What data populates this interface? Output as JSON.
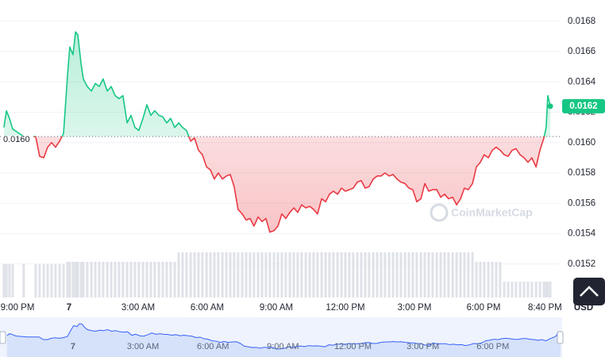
{
  "chart_data": {
    "type": "line",
    "x": [
      0.17,
      0.28,
      0.41,
      0.55,
      1.03,
      1.55,
      1.72,
      1.9,
      2.07,
      2.24,
      2.41,
      2.59,
      2.76,
      2.93,
      3.03,
      3.17,
      3.28,
      3.38,
      3.52,
      3.62,
      3.79,
      3.97,
      4.14,
      4.31,
      4.48,
      4.66,
      4.83,
      5.0,
      5.17,
      5.34,
      5.52,
      5.69,
      5.86,
      6.03,
      6.21,
      6.38,
      6.55,
      6.72,
      6.9,
      7.07,
      7.24,
      7.41,
      7.59,
      7.76,
      7.93,
      8.1,
      8.28,
      8.45,
      8.62,
      8.79,
      8.97,
      9.14,
      9.31,
      9.48,
      9.66,
      9.83,
      10.0,
      10.17,
      10.34,
      10.52,
      10.69,
      10.86,
      11.03,
      11.21,
      11.38,
      11.55,
      11.72,
      11.9,
      12.07,
      12.24,
      12.41,
      12.59,
      12.76,
      12.93,
      13.1,
      13.28,
      13.45,
      13.62,
      13.79,
      13.97,
      14.14,
      14.31,
      14.48,
      14.66,
      14.83,
      15.0,
      15.17,
      15.34,
      15.52,
      15.69,
      15.86,
      16.03,
      16.21,
      16.38,
      16.55,
      16.72,
      16.9,
      17.07,
      17.24,
      17.41,
      17.59,
      17.76,
      17.93,
      18.1,
      18.28,
      18.45,
      18.62,
      18.79,
      18.97,
      19.14,
      19.31,
      19.48,
      19.66,
      19.83,
      20.0,
      20.17,
      20.34,
      20.52,
      20.69,
      20.86,
      21.03,
      21.21,
      21.38,
      21.55,
      21.72,
      21.9,
      22.07,
      22.24,
      22.41,
      22.59,
      22.76,
      22.93,
      23.1,
      23.28,
      23.45,
      23.62,
      23.72,
      23.79,
      23.9
    ],
    "values": [
      0.0161,
      0.01621,
      0.01616,
      0.01609,
      0.01604,
      0.01604,
      0.01591,
      0.0159,
      0.01597,
      0.016,
      0.01597,
      0.01601,
      0.01606,
      0.01644,
      0.01663,
      0.01658,
      0.01673,
      0.01671,
      0.01652,
      0.01642,
      0.01637,
      0.01634,
      0.01639,
      0.01637,
      0.01642,
      0.01634,
      0.01637,
      0.01631,
      0.01629,
      0.01631,
      0.01613,
      0.01618,
      0.0161,
      0.01608,
      0.01616,
      0.01625,
      0.01618,
      0.01621,
      0.01618,
      0.01617,
      0.01613,
      0.01616,
      0.0161,
      0.01613,
      0.0161,
      0.01608,
      0.01601,
      0.01603,
      0.01595,
      0.01592,
      0.01584,
      0.01582,
      0.01576,
      0.0158,
      0.01576,
      0.01578,
      0.01579,
      0.01571,
      0.01556,
      0.01553,
      0.01549,
      0.0155,
      0.01545,
      0.01551,
      0.01548,
      0.0155,
      0.01541,
      0.01542,
      0.01545,
      0.01553,
      0.0155,
      0.01554,
      0.01557,
      0.01554,
      0.01559,
      0.01557,
      0.01558,
      0.01556,
      0.01553,
      0.01563,
      0.01561,
      0.01566,
      0.01568,
      0.01566,
      0.0157,
      0.01568,
      0.01569,
      0.0157,
      0.01574,
      0.01575,
      0.0157,
      0.01571,
      0.01576,
      0.01578,
      0.01578,
      0.0158,
      0.01578,
      0.01579,
      0.01576,
      0.01574,
      0.01573,
      0.0157,
      0.01569,
      0.01561,
      0.01563,
      0.01573,
      0.01568,
      0.01569,
      0.01569,
      0.01564,
      0.01566,
      0.01563,
      0.01564,
      0.01559,
      0.01563,
      0.0157,
      0.01569,
      0.01573,
      0.01584,
      0.01587,
      0.01592,
      0.0159,
      0.01595,
      0.01597,
      0.01595,
      0.01592,
      0.01591,
      0.01595,
      0.01596,
      0.01592,
      0.0159,
      0.01587,
      0.0159,
      0.01584,
      0.01595,
      0.01603,
      0.0161,
      0.01631,
      0.01624
    ],
    "volume": [
      42,
      42,
      42,
      42,
      42,
      42,
      42,
      42,
      42,
      42,
      42,
      42,
      42,
      45,
      45,
      45,
      45,
      45,
      45,
      45,
      45,
      45,
      45,
      45,
      45,
      45,
      45,
      45,
      45,
      45,
      45,
      45,
      45,
      45,
      45,
      45,
      45,
      45,
      45,
      45,
      45,
      45,
      45,
      57,
      57,
      57,
      57,
      57,
      57,
      57,
      57,
      57,
      57,
      57,
      57,
      57,
      57,
      57,
      57,
      57,
      57,
      57,
      57,
      57,
      57,
      57,
      57,
      57,
      57,
      57,
      57,
      57,
      57,
      57,
      57,
      57,
      57,
      57,
      57,
      57,
      57,
      57,
      57,
      57,
      57,
      57,
      57,
      57,
      57,
      57,
      57,
      57,
      57,
      57,
      57,
      57,
      57,
      57,
      57,
      57,
      57,
      57,
      57,
      57,
      57,
      57,
      57,
      57,
      57,
      57,
      57,
      57,
      57,
      57,
      57,
      57,
      57,
      57,
      45,
      45,
      45,
      45,
      45,
      45,
      45,
      20,
      20,
      20,
      20,
      20,
      20,
      20,
      20,
      20,
      20,
      20,
      20,
      20,
      20
    ],
    "volume_lim": [
      0,
      105
    ],
    "up_color": "#16c784",
    "down_color": "#ea3943",
    "baseline": {
      "value": 0.01604,
      "label": "0.0160"
    },
    "last_price_label": "0.0162",
    "currency": "USD",
    "watermark": "CoinMarketCap",
    "xlim": [
      0,
      24.31
    ],
    "ylim": [
      0.01511,
      0.01694
    ],
    "yticks": [
      0.0152,
      0.0154,
      0.0156,
      0.0158,
      {
        "value": 0.016,
        "label": "0.0160"
      },
      0.0162,
      0.0164,
      0.0166,
      0.0168
    ],
    "xticks": [
      {
        "value": 0,
        "label": "9:00 PM"
      },
      {
        "value": 3,
        "label": "7"
      },
      {
        "value": 6,
        "label": "3:00 AM"
      },
      {
        "value": 9,
        "label": "6:00 AM"
      },
      {
        "value": 12,
        "label": "9:00 AM"
      },
      {
        "value": 15,
        "label": "12:00 PM"
      },
      {
        "value": 18,
        "label": "3:00 PM"
      },
      {
        "value": 21,
        "label": "6:00 PM"
      },
      {
        "value": 23.667,
        "label": "8:40 PM"
      }
    ],
    "grid": true,
    "navigator": {
      "xlim": [
        -0.06,
        23.9
      ],
      "xticks": [
        {
          "value": 3,
          "label": "7"
        },
        {
          "value": 6,
          "label": "3:00 AM"
        },
        {
          "value": 9,
          "label": "6:00 AM"
        },
        {
          "value": 12,
          "label": "9:00 AM"
        },
        {
          "value": 15,
          "label": "12:00 PM"
        },
        {
          "value": 18,
          "label": "3:00 PM"
        },
        {
          "value": 21,
          "label": "6:00 PM"
        }
      ]
    }
  }
}
